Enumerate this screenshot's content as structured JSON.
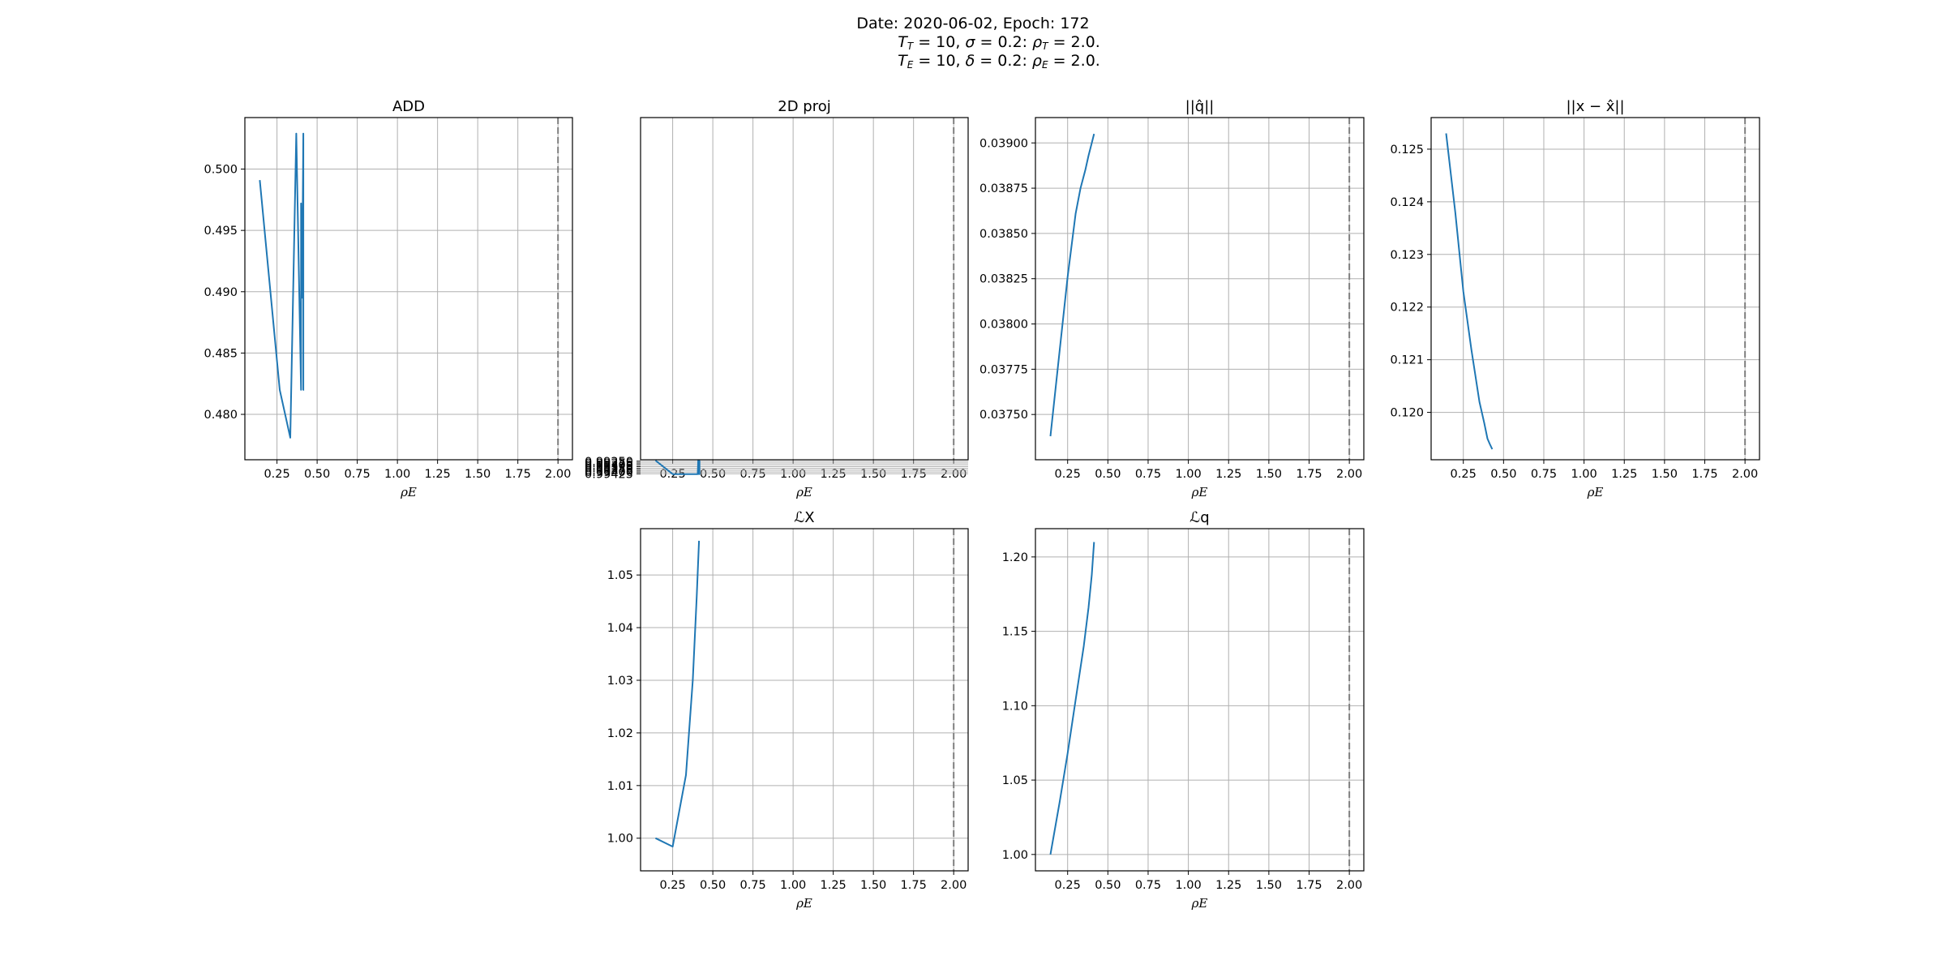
{
  "figure": {
    "line1": "Date: 2020-06-02, Epoch: 172",
    "line2": "T_T = 10, σ = 0.2: ρ_T = 2.0.",
    "line3": "T_E = 10, δ = 0.2: ρ_E = 2.0."
  },
  "colors": {
    "series": "#1f77b4",
    "grid": "#b0b0b0",
    "vline": "#808080"
  },
  "chart_data": [
    {
      "type": "line",
      "title": "ADD",
      "xlabel": "ρE",
      "xlim": [
        0.05,
        2.09
      ],
      "ylim": [
        0.4763,
        0.5042
      ],
      "xticks": [
        0.25,
        0.5,
        0.75,
        1.0,
        1.25,
        1.5,
        1.75,
        2.0
      ],
      "xtick_labels": [
        "0.25",
        "0.50",
        "0.75",
        "1.00",
        "1.25",
        "1.50",
        "1.75",
        "2.00"
      ],
      "yticks": [
        0.48,
        0.485,
        0.49,
        0.495,
        0.5
      ],
      "ytick_labels": [
        "0.480",
        "0.485",
        "0.490",
        "0.495",
        "0.500"
      ],
      "vline": 2.0,
      "x": [
        0.143,
        0.267,
        0.333,
        0.37,
        0.4,
        0.4,
        0.406,
        0.414,
        0.414,
        0.419
      ],
      "y": [
        0.4991,
        0.482,
        0.4781,
        0.5029,
        0.482,
        0.4972,
        0.4895,
        0.5029,
        0.482,
        0.482
      ]
    },
    {
      "type": "line",
      "title": "2D proj",
      "xlabel": "ρE",
      "xlim": [
        0.05,
        2.09
      ],
      "ylim": [
        0.99229,
        0.9445
      ],
      "xticks": [
        0.25,
        0.5,
        0.75,
        1.0,
        1.25,
        1.5,
        1.75,
        2.0
      ],
      "xtick_labels": [
        "0.25",
        "0.50",
        "0.75",
        "1.00",
        "1.25",
        "1.50",
        "1.75",
        "2.00"
      ],
      "yticks": [
        0.9925,
        0.99275,
        0.993,
        0.99325,
        0.9935,
        0.99375,
        0.994,
        0.99425
      ],
      "ytick_labels": [
        "0.99250",
        "0.99275",
        "0.99300",
        "0.99325",
        "0.99350",
        "0.99375",
        "0.99400",
        "0.99425"
      ],
      "vline": 2.0,
      "x": [
        0.143,
        0.25,
        0.406,
        0.409,
        0.414,
        0.417,
        0.417,
        0.419
      ],
      "y": [
        0.99239,
        0.99429,
        0.99429,
        0.99239,
        0.99429,
        0.99429,
        0.99239,
        0.99239
      ]
    },
    {
      "type": "line",
      "title": "||q̂||",
      "xlabel": "ρE",
      "xlim": [
        0.05,
        2.09
      ],
      "ylim": [
        0.03725,
        0.03914
      ],
      "xticks": [
        0.25,
        0.5,
        0.75,
        1.0,
        1.25,
        1.5,
        1.75,
        2.0
      ],
      "xtick_labels": [
        "0.25",
        "0.50",
        "0.75",
        "1.00",
        "1.25",
        "1.50",
        "1.75",
        "2.00"
      ],
      "yticks": [
        0.0375,
        0.03775,
        0.038,
        0.03825,
        0.0385,
        0.03875,
        0.039
      ],
      "ytick_labels": [
        "0.03750",
        "0.03775",
        "0.03800",
        "0.03825",
        "0.03850",
        "0.03875",
        "0.03900"
      ],
      "vline": 2.0,
      "x": [
        0.143,
        0.2,
        0.25,
        0.3,
        0.33,
        0.36,
        0.38,
        0.4,
        0.414
      ],
      "y": [
        0.03738,
        0.03785,
        0.03826,
        0.03861,
        0.03875,
        0.03885,
        0.03893,
        0.039,
        0.03905
      ]
    },
    {
      "type": "line",
      "title": "||x − x̂||",
      "xlabel": "ρE",
      "xlim": [
        0.05,
        2.09
      ],
      "ylim": [
        0.1191,
        0.1256
      ],
      "xticks": [
        0.25,
        0.5,
        0.75,
        1.0,
        1.25,
        1.5,
        1.75,
        2.0
      ],
      "xtick_labels": [
        "0.25",
        "0.50",
        "0.75",
        "1.00",
        "1.25",
        "1.50",
        "1.75",
        "2.00"
      ],
      "yticks": [
        0.12,
        0.121,
        0.122,
        0.123,
        0.124,
        0.125
      ],
      "ytick_labels": [
        "0.120",
        "0.121",
        "0.122",
        "0.123",
        "0.124",
        "0.125"
      ],
      "vline": 2.0,
      "x": [
        0.143,
        0.2,
        0.25,
        0.3,
        0.35,
        0.38,
        0.4,
        0.414,
        0.43
      ],
      "y": [
        0.1253,
        0.1238,
        0.1223,
        0.1212,
        0.1202,
        0.1198,
        0.1195,
        0.1194,
        0.1193
      ]
    },
    {
      "type": "line",
      "title": "ℒX",
      "xlabel": "ρE",
      "xlim": [
        0.05,
        2.09
      ],
      "ylim": [
        0.9938,
        1.0588
      ],
      "xticks": [
        0.25,
        0.5,
        0.75,
        1.0,
        1.25,
        1.5,
        1.75,
        2.0
      ],
      "xtick_labels": [
        "0.25",
        "0.50",
        "0.75",
        "1.00",
        "1.25",
        "1.50",
        "1.75",
        "2.00"
      ],
      "yticks": [
        1.0,
        1.01,
        1.02,
        1.03,
        1.04,
        1.05
      ],
      "ytick_labels": [
        "1.00",
        "1.01",
        "1.02",
        "1.03",
        "1.04",
        "1.05"
      ],
      "vline": 2.0,
      "x": [
        0.143,
        0.25,
        0.333,
        0.375,
        0.4,
        0.414
      ],
      "y": [
        1.0,
        0.9984,
        1.012,
        1.03,
        1.046,
        1.0565
      ]
    },
    {
      "type": "line",
      "title": "ℒq",
      "xlabel": "ρE",
      "xlim": [
        0.05,
        2.09
      ],
      "ylim": [
        0.989,
        1.219
      ],
      "xticks": [
        0.25,
        0.5,
        0.75,
        1.0,
        1.25,
        1.5,
        1.75,
        2.0
      ],
      "xtick_labels": [
        "0.25",
        "0.50",
        "0.75",
        "1.00",
        "1.25",
        "1.50",
        "1.75",
        "2.00"
      ],
      "yticks": [
        1.0,
        1.05,
        1.1,
        1.15,
        1.2
      ],
      "ytick_labels": [
        "1.00",
        "1.05",
        "1.10",
        "1.15",
        "1.20"
      ],
      "vline": 2.0,
      "x": [
        0.143,
        0.2,
        0.25,
        0.3,
        0.35,
        0.38,
        0.4,
        0.414
      ],
      "y": [
        1.0,
        1.035,
        1.068,
        1.104,
        1.14,
        1.166,
        1.188,
        1.21
      ]
    }
  ]
}
